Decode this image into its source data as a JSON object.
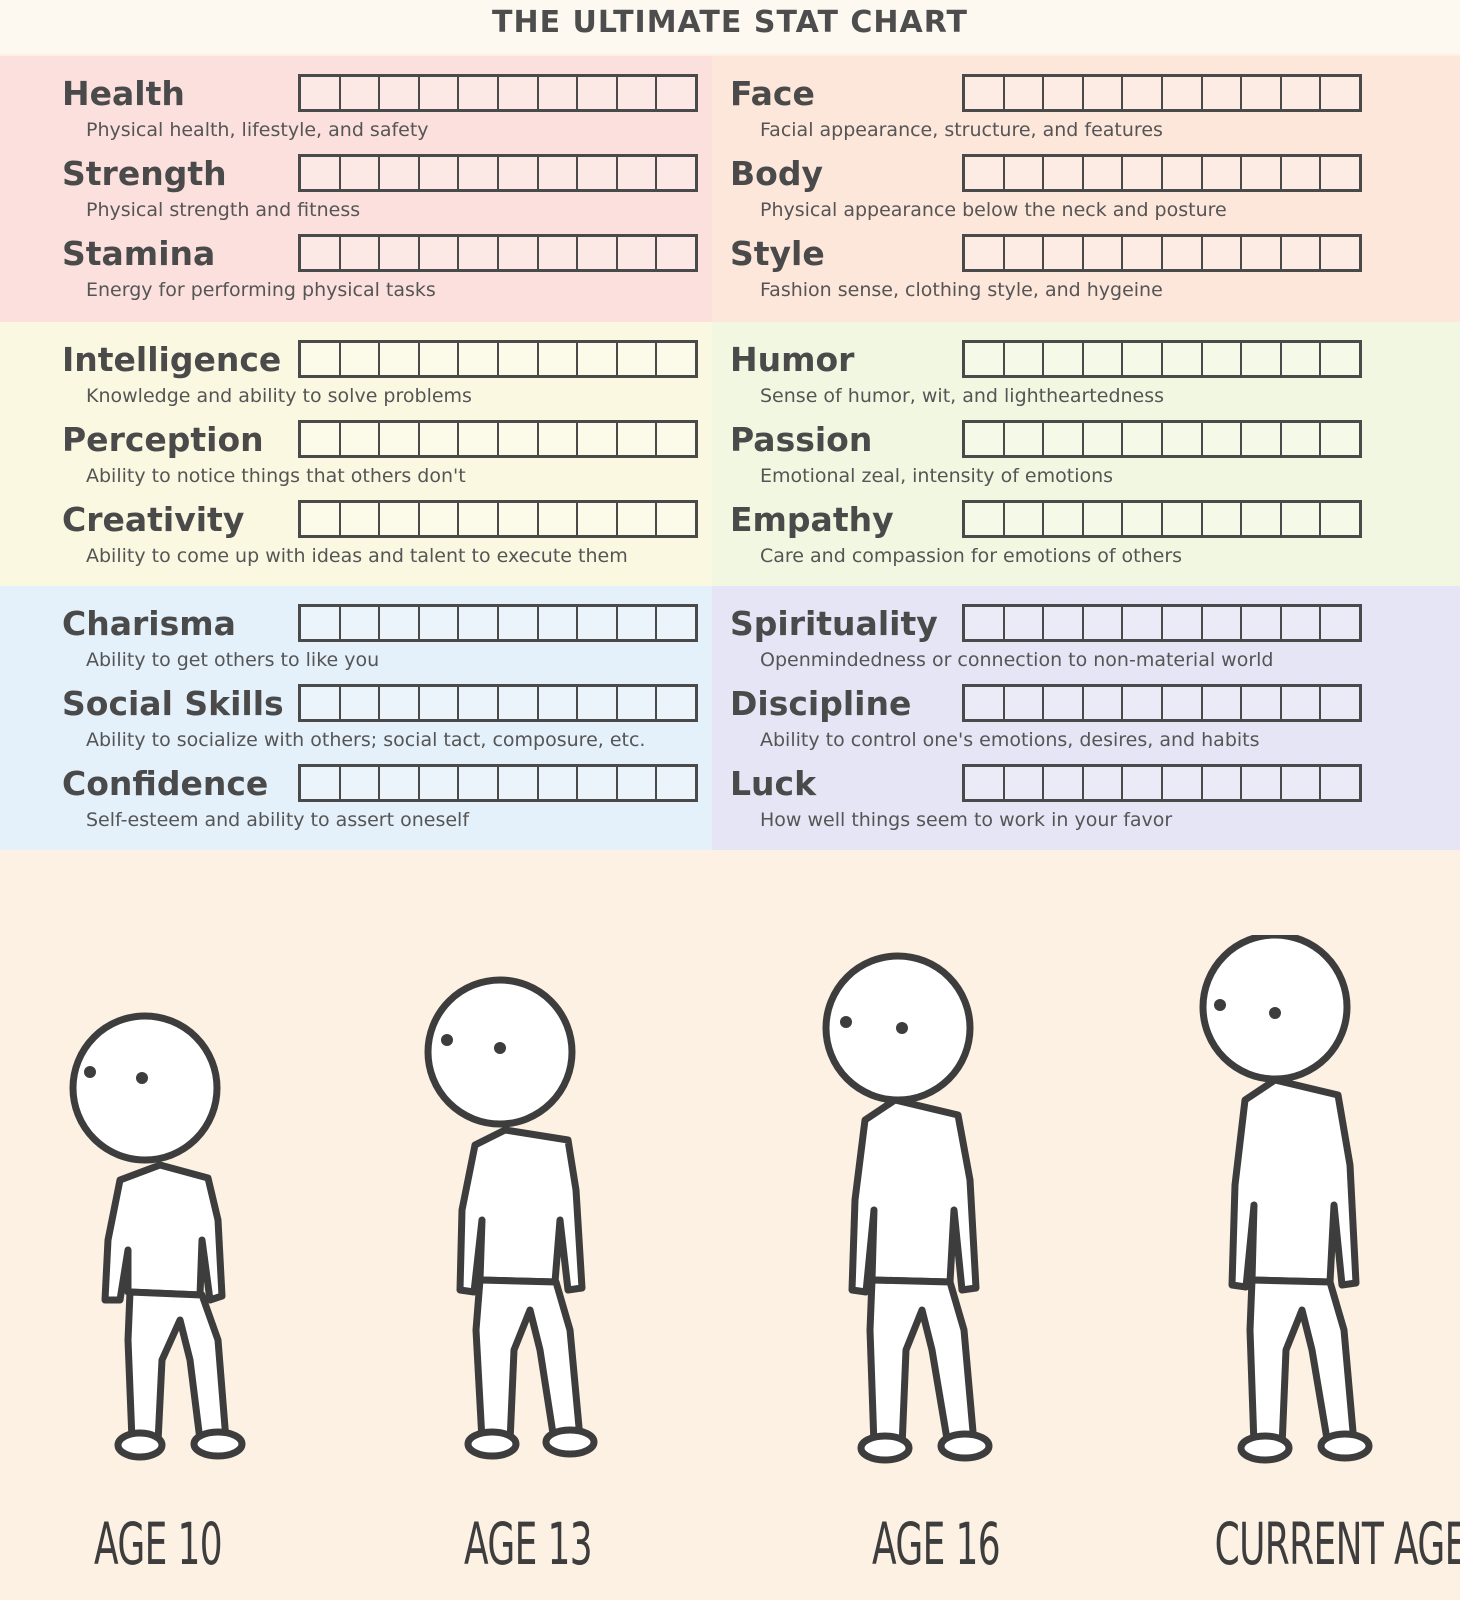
{
  "title": "THE ULTIMATE STAT CHART",
  "colors": {
    "physical_left": "#fbe0dd",
    "physical_right": "#fde6da",
    "mental_left": "#fbf8e2",
    "mental_right": "#f1f7e1",
    "social_left": "#e4f0fa",
    "social_right": "#e5e5f5"
  },
  "boxes_per_stat": 10,
  "stats": {
    "health": {
      "name": "Health",
      "desc": "Physical health, lifestyle, and safety"
    },
    "strength": {
      "name": "Strength",
      "desc": "Physical strength and fitness"
    },
    "stamina": {
      "name": "Stamina",
      "desc": "Energy for performing physical tasks"
    },
    "face": {
      "name": "Face",
      "desc": "Facial appearance, structure, and features"
    },
    "body": {
      "name": "Body",
      "desc": "Physical appearance below the neck and posture"
    },
    "style": {
      "name": "Style",
      "desc": "Fashion sense, clothing style, and hygeine"
    },
    "intelligence": {
      "name": "Intelligence",
      "desc": "Knowledge and ability to solve problems"
    },
    "perception": {
      "name": "Perception",
      "desc": "Ability to notice things that others don't"
    },
    "creativity": {
      "name": "Creativity",
      "desc": "Ability to come up with ideas and talent to execute them"
    },
    "humor": {
      "name": "Humor",
      "desc": "Sense of humor, wit, and lightheartedness"
    },
    "passion": {
      "name": "Passion",
      "desc": "Emotional zeal, intensity of emotions"
    },
    "empathy": {
      "name": "Empathy",
      "desc": "Care and compassion for emotions of others"
    },
    "charisma": {
      "name": "Charisma",
      "desc": "Ability to get others to like you"
    },
    "social_skills": {
      "name": "Social Skills",
      "desc": "Ability to socialize with others; social tact, composure, etc."
    },
    "confidence": {
      "name": "Confidence",
      "desc": "Self-esteem and ability to assert oneself"
    },
    "spirituality": {
      "name": "Spirituality",
      "desc": "Openmindedness or connection to non-material world"
    },
    "discipline": {
      "name": "Discipline",
      "desc": "Ability to control one's emotions, desires, and habits"
    },
    "luck": {
      "name": "Luck",
      "desc": "How well things seem to work in your favor"
    }
  },
  "ages": {
    "age10": "AGE 10",
    "age13": "AGE 13",
    "age16": "AGE 16",
    "current": "CURRENT AGE"
  }
}
